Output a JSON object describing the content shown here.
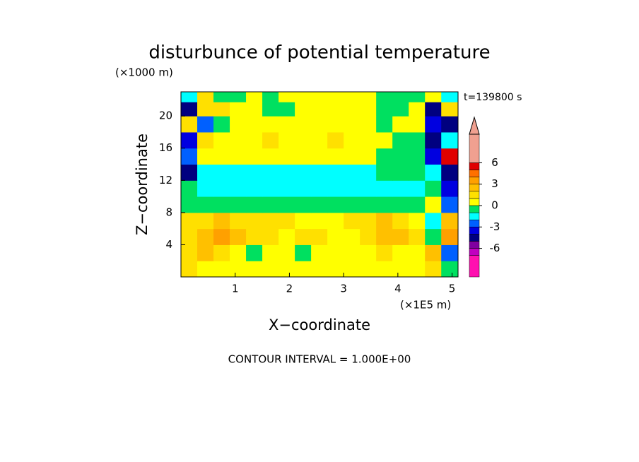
{
  "chart_data": {
    "type": "contour",
    "title": "disturbunce of potential temperature",
    "y_unit_label": "(×1000 m)",
    "x_unit_label": "(×1E5 m)",
    "time_label": "t=139800 s",
    "xlabel": "X−coordinate",
    "ylabel": "Z−coordinate",
    "footer": "CONTOUR INTERVAL = 1.000E+00",
    "xlim": [
      0,
      5.11
    ],
    "ylim": [
      0,
      23
    ],
    "xticks": [
      1,
      2,
      3,
      4,
      5
    ],
    "yticks": [
      4,
      8,
      12,
      16,
      20
    ],
    "x": [
      0.15,
      0.45,
      0.75,
      1.05,
      1.35,
      1.65,
      1.95,
      2.25,
      2.55,
      2.85,
      3.15,
      3.45,
      3.75,
      4.05,
      4.35,
      4.65,
      4.95
    ],
    "y": [
      1,
      3,
      5,
      7,
      9,
      11,
      13,
      15,
      17,
      19,
      21,
      22.5
    ],
    "z": [
      [
        1.5,
        0.5,
        0.5,
        0.5,
        0.5,
        0.5,
        0.5,
        0.5,
        0.5,
        0.5,
        0.5,
        0.5,
        0.5,
        0.5,
        0.5,
        1.5,
        -0.5
      ],
      [
        1.5,
        2.5,
        1.5,
        0.5,
        -0.5,
        0.5,
        0.5,
        -0.5,
        0.5,
        0.5,
        0.5,
        0.5,
        1.5,
        0.5,
        0.5,
        2.5,
        -2.5
      ],
      [
        1.5,
        2.5,
        3.5,
        2.5,
        1.5,
        1.5,
        0.5,
        1.5,
        1.5,
        0.5,
        0.5,
        1.5,
        2.5,
        2.5,
        1.5,
        -0.5,
        3.5
      ],
      [
        1.5,
        1.5,
        2.5,
        1.5,
        1.5,
        1.5,
        1.5,
        0.5,
        0.5,
        0.5,
        1.5,
        1.5,
        2.5,
        1.5,
        0.5,
        -1.5,
        2.5
      ],
      [
        -0.5,
        -0.5,
        -0.5,
        -0.5,
        -0.5,
        -0.5,
        -0.5,
        -0.5,
        -0.5,
        -0.5,
        -0.5,
        -0.5,
        -0.5,
        -0.5,
        -0.5,
        0.5,
        -2.5
      ],
      [
        -0.5,
        -1.5,
        -1.5,
        -1.5,
        -1.5,
        -1.5,
        -1.5,
        -1.5,
        -1.5,
        -1.5,
        -1.5,
        -1.5,
        -1.5,
        -1.5,
        -1.5,
        -0.5,
        -3.5
      ],
      [
        -4.5,
        -1.5,
        -1.5,
        -1.5,
        -1.5,
        -1.5,
        -1.5,
        -1.5,
        -1.5,
        -1.5,
        -1.5,
        -1.5,
        -0.5,
        -0.5,
        -0.5,
        -1.5,
        -4.5
      ],
      [
        -2.5,
        0.5,
        0.5,
        0.5,
        0.5,
        0.5,
        0.5,
        0.5,
        0.5,
        0.5,
        0.5,
        0.5,
        -0.5,
        -0.5,
        -0.5,
        -3.5,
        5.5
      ],
      [
        -3.5,
        1.5,
        0.5,
        0.5,
        0.5,
        1.5,
        0.5,
        0.5,
        0.5,
        1.5,
        0.5,
        0.5,
        0.5,
        -0.5,
        -0.5,
        -4.5,
        -1.5
      ],
      [
        1.5,
        -2.5,
        -0.5,
        0.5,
        0.5,
        0.5,
        0.5,
        0.5,
        0.5,
        0.5,
        0.5,
        0.5,
        -0.5,
        0.5,
        0.5,
        -3.5,
        -4.5
      ],
      [
        -4.5,
        1.5,
        1.5,
        0.5,
        0.5,
        -0.5,
        -0.5,
        0.5,
        0.5,
        0.5,
        0.5,
        0.5,
        -0.5,
        -0.5,
        0.5,
        -4.5,
        1.5
      ],
      [
        -1.5,
        1.5,
        -0.5,
        -0.5,
        0.5,
        -0.5,
        0.5,
        0.5,
        0.5,
        0.5,
        0.5,
        0.5,
        -0.5,
        -0.5,
        -0.5,
        0.5,
        -1.5
      ]
    ],
    "levels": [
      -10,
      -7,
      -6,
      -5,
      -4,
      -3,
      -2,
      -1,
      0,
      1,
      2,
      3,
      4,
      5,
      6,
      10
    ],
    "colors": [
      "#ff10b0",
      "#c000c0",
      "#8000a0",
      "#000080",
      "#0000e0",
      "#0060ff",
      "#00ffff",
      "#00e060",
      "#ffff00",
      "#ffe000",
      "#ffc000",
      "#ffa000",
      "#ff7000",
      "#e00000",
      "#f0a090"
    ],
    "over_color": "#f0a090",
    "colorbar_ticks": [
      6,
      3,
      0,
      -3,
      -6
    ]
  }
}
